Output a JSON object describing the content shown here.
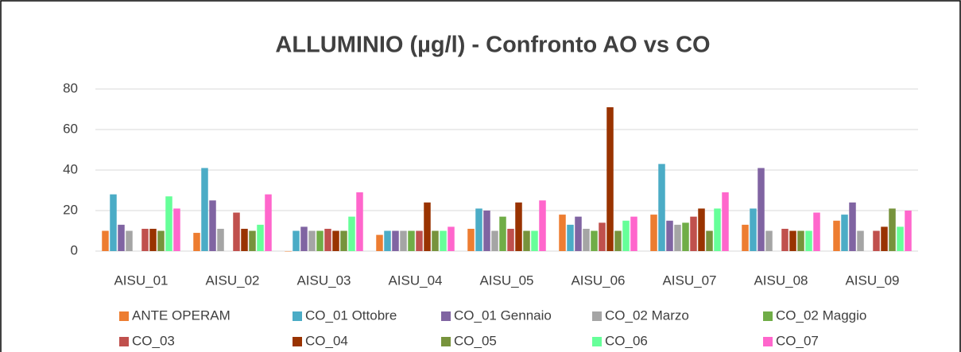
{
  "chart_data": {
    "type": "bar",
    "title": "ALLUMINIO (µg/l)  -  Confronto AO vs CO",
    "categories": [
      "AISU_01",
      "AISU_02",
      "AISU_03",
      "AISU_04",
      "AISU_05",
      "AISU_06",
      "AISU_07",
      "AISU_08",
      "AISU_09"
    ],
    "series": [
      {
        "name": "ANTE OPERAM",
        "color": "#ed7d31",
        "values": [
          10,
          9,
          0,
          8,
          11,
          18,
          18,
          13,
          15
        ]
      },
      {
        "name": "CO_01  Ottobre",
        "color": "#4bacc6",
        "values": [
          28,
          41,
          10,
          10,
          21,
          13,
          43,
          21,
          18
        ]
      },
      {
        "name": "CO_01  Gennaio",
        "color": "#8064a2",
        "values": [
          13,
          25,
          12,
          10,
          20,
          17,
          15,
          41,
          24
        ]
      },
      {
        "name": "CO_02 Marzo",
        "color": "#a5a5a5",
        "values": [
          10,
          11,
          10,
          10,
          10,
          11,
          13,
          10,
          10
        ]
      },
      {
        "name": "CO_02 Maggio",
        "color": "#70ad47",
        "values": [
          null,
          null,
          10,
          10,
          17,
          10,
          14,
          null,
          null
        ]
      },
      {
        "name": "CO_03",
        "color": "#c0504d",
        "values": [
          11,
          19,
          11,
          10,
          11,
          14,
          17,
          11,
          10
        ]
      },
      {
        "name": "CO_04",
        "color": "#993300",
        "values": [
          11,
          11,
          10,
          24,
          24,
          71,
          21,
          10,
          12
        ]
      },
      {
        "name": "CO_05",
        "color": "#77933c",
        "values": [
          10,
          10,
          10,
          10,
          10,
          10,
          10,
          10,
          21
        ]
      },
      {
        "name": "CO_06",
        "color": "#66ff99",
        "values": [
          27,
          13,
          17,
          10,
          10,
          15,
          21,
          10,
          12
        ]
      },
      {
        "name": "CO_07",
        "color": "#ff66cc",
        "values": [
          21,
          28,
          29,
          12,
          25,
          17,
          29,
          19,
          20
        ]
      }
    ],
    "ylim": [
      0,
      80
    ],
    "yticks": [
      0,
      20,
      40,
      60,
      80
    ],
    "grid": true
  }
}
